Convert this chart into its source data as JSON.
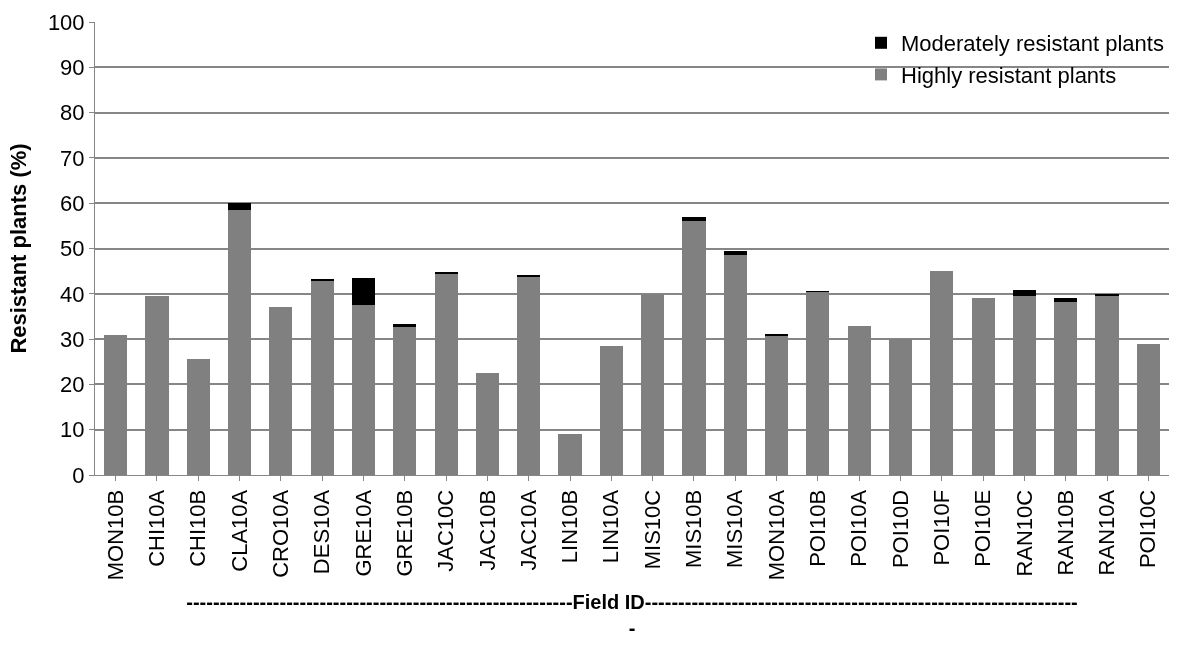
{
  "chart_data": {
    "type": "bar",
    "stacked": true,
    "xlabel": "----------------------------------------------------------Field ID-----------------------------------------------------------------\n-",
    "ylabel": "Resistant plants (%)",
    "categories": [
      "MON10B",
      "CHI10A",
      "CHI10B",
      "CLA10A",
      "CRO10A",
      "DES10A",
      "GRE10A",
      "GRE10B",
      "JAC10C",
      "JAC10B",
      "JAC10A",
      "LIN10B",
      "LIN10A",
      "MIS10C",
      "MIS10B",
      "MIS10A",
      "MON10A",
      "POI10B",
      "POI10A",
      "POI10D",
      "POI10F",
      "POI10E",
      "RAN10C",
      "RAN10B",
      "RAN10A",
      "POI10C"
    ],
    "series": [
      {
        "name": "Highly resistant plants",
        "color": "#808080",
        "values": [
          31,
          39.5,
          25.5,
          58.5,
          37,
          43,
          37.5,
          32.7,
          44.3,
          22.5,
          43.8,
          9,
          28.5,
          40,
          56,
          48.5,
          30.6,
          40.4,
          33,
          30,
          45,
          39,
          39.5,
          38.3,
          39.6,
          29
        ]
      },
      {
        "name": "Moderately resistant plants",
        "color": "#000000",
        "values": [
          0,
          0,
          0,
          1.5,
          0,
          0.3,
          6,
          0.6,
          0.5,
          0,
          0.3,
          0,
          0,
          0,
          0.9,
          0.9,
          0.6,
          0.2,
          0,
          0,
          0,
          0,
          1.3,
          0.7,
          0.2,
          0
        ]
      }
    ],
    "ylim": [
      0,
      100
    ],
    "yticks": [
      0,
      10,
      20,
      30,
      40,
      50,
      60,
      70,
      80,
      90,
      100
    ],
    "grid": "y",
    "legend": "top right"
  }
}
